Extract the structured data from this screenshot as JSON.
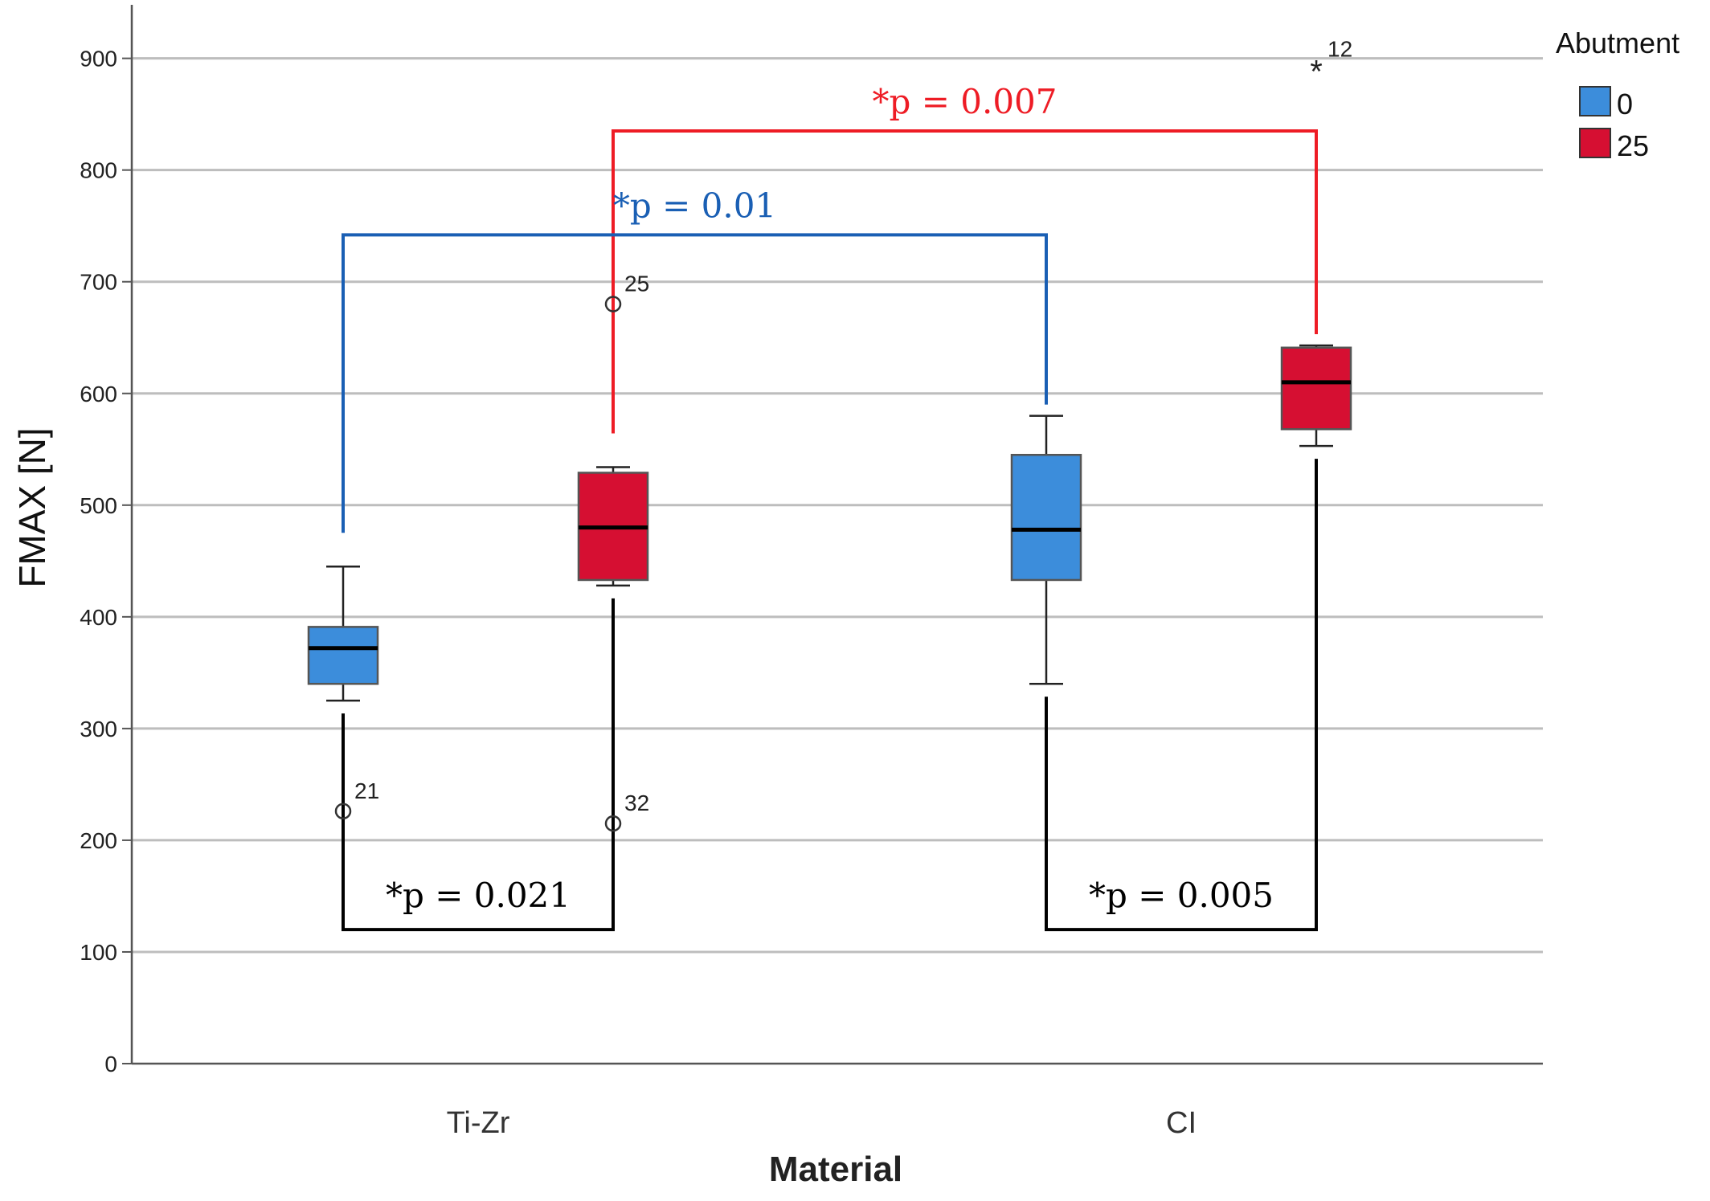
{
  "chart_data": {
    "type": "box",
    "xlabel": "Material",
    "ylabel": "FMAX [N]",
    "ylim": [
      0,
      950
    ],
    "yticks": [
      "0",
      "100",
      "200",
      "300",
      "400",
      "500",
      "600",
      "700",
      "800",
      "900"
    ],
    "grid": "horizontal",
    "categories": [
      "Ti-Zr",
      "CI"
    ],
    "legend": {
      "title": "Abutment",
      "position": "top-right",
      "entries": [
        {
          "label": "0",
          "color": "#3c8ddb"
        },
        {
          "label": "25",
          "color": "#d60f32"
        }
      ]
    },
    "series": [
      {
        "name": "0",
        "color": "#3c8ddb",
        "boxes": [
          {
            "category": "Ti-Zr",
            "whisker_low": 325,
            "q1": 340,
            "median": 372,
            "q3": 391,
            "whisker_high": 445
          },
          {
            "category": "CI",
            "whisker_low": 340,
            "q1": 433,
            "median": 478,
            "q3": 545,
            "whisker_high": 580
          }
        ]
      },
      {
        "name": "25",
        "color": "#d60f32",
        "boxes": [
          {
            "category": "Ti-Zr",
            "whisker_low": 428,
            "q1": 433,
            "median": 480,
            "q3": 529,
            "whisker_high": 534
          },
          {
            "category": "CI",
            "whisker_low": 553,
            "q1": 568,
            "median": 610,
            "q3": 641,
            "whisker_high": 643
          }
        ]
      }
    ],
    "outliers": [
      {
        "category": "Ti-Zr",
        "series": "0",
        "value": 226,
        "label": "21",
        "marker": "circle"
      },
      {
        "category": "Ti-Zr",
        "series": "25",
        "value": 680,
        "label": "25",
        "marker": "circle"
      },
      {
        "category": "Ti-Zr",
        "series": "25",
        "value": 215,
        "label": "32",
        "marker": "circle"
      },
      {
        "category": "CI",
        "series": "25",
        "value": 890,
        "label": "12",
        "marker": "star"
      }
    ],
    "annotations": [
      {
        "text": "*p = 0.007",
        "color": "#ee1c25",
        "from": {
          "category": "Ti-Zr",
          "series": "25"
        },
        "to": {
          "category": "CI",
          "series": "25"
        },
        "bracket_y": 835,
        "side": "top"
      },
      {
        "text": "*p = 0.01",
        "color": "#1a5fb4",
        "from": {
          "category": "Ti-Zr",
          "series": "0"
        },
        "to": {
          "category": "CI",
          "series": "0"
        },
        "bracket_y": 742,
        "side": "top"
      },
      {
        "text": "*p = 0.021",
        "color": "#000000",
        "from": {
          "category": "Ti-Zr",
          "series": "0"
        },
        "to": {
          "category": "Ti-Zr",
          "series": "25"
        },
        "bracket_y": 120,
        "side": "bottom"
      },
      {
        "text": "*p = 0.005",
        "color": "#000000",
        "from": {
          "category": "CI",
          "series": "0"
        },
        "to": {
          "category": "CI",
          "series": "25"
        },
        "bracket_y": 120,
        "side": "bottom"
      }
    ]
  }
}
